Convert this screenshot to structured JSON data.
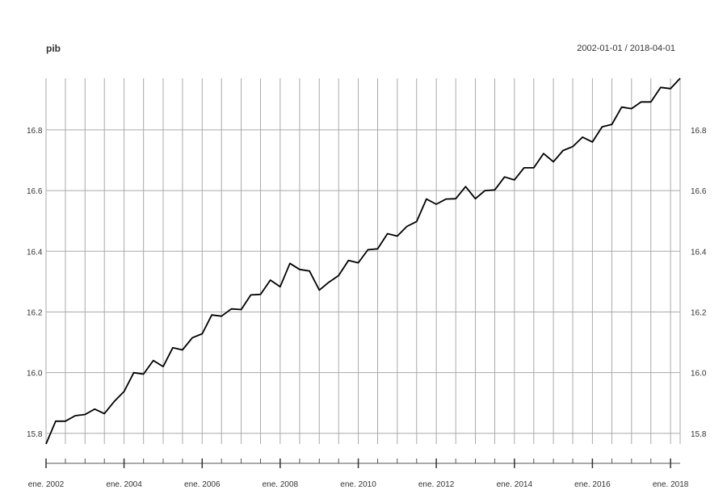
{
  "chart_data": {
    "type": "line",
    "title": "pib",
    "date_range": "2002-01-01 / 2018-04-01",
    "xlabel": "",
    "ylabel": "",
    "x_start": "2002-01-01",
    "x_end": "2018-04-01",
    "ylim": [
      15.765,
      16.97
    ],
    "grid": true,
    "y_ticks": [
      15.8,
      16.0,
      16.2,
      16.4,
      16.6,
      16.8
    ],
    "y_tick_labels": [
      "15.8",
      "16.0",
      "16.2",
      "16.4",
      "16.6",
      "16.8"
    ],
    "x_tick_dates": [
      "2002-01-01",
      "2004-01-01",
      "2006-01-01",
      "2008-01-01",
      "2010-01-01",
      "2012-01-01",
      "2014-01-01",
      "2016-01-01",
      "2018-01-01"
    ],
    "x_tick_labels": [
      "ene. 2002",
      "ene. 2004",
      "ene. 2006",
      "ene. 2008",
      "ene. 2010",
      "ene. 2012",
      "ene. 2014",
      "ene. 2016",
      "ene. 2018"
    ],
    "series": [
      {
        "color": "#000000",
        "x": [
          "2002-01-01",
          "2002-04-01",
          "2002-07-01",
          "2002-10-01",
          "2003-01-01",
          "2003-04-01",
          "2003-07-01",
          "2003-10-01",
          "2004-01-01",
          "2004-04-01",
          "2004-07-01",
          "2004-10-01",
          "2005-01-01",
          "2005-04-01",
          "2005-07-01",
          "2005-10-01",
          "2006-01-01",
          "2006-04-01",
          "2006-07-01",
          "2006-10-01",
          "2007-01-01",
          "2007-04-01",
          "2007-07-01",
          "2007-10-01",
          "2008-01-01",
          "2008-04-01",
          "2008-07-01",
          "2008-10-01",
          "2009-01-01",
          "2009-04-01",
          "2009-07-01",
          "2009-10-01",
          "2010-01-01",
          "2010-04-01",
          "2010-07-01",
          "2010-10-01",
          "2011-01-01",
          "2011-04-01",
          "2011-07-01",
          "2011-10-01",
          "2012-01-01",
          "2012-04-01",
          "2012-07-01",
          "2012-10-01",
          "2013-01-01",
          "2013-04-01",
          "2013-07-01",
          "2013-10-01",
          "2014-01-01",
          "2014-04-01",
          "2014-07-01",
          "2014-10-01",
          "2015-01-01",
          "2015-04-01",
          "2015-07-01",
          "2015-10-01",
          "2016-01-01",
          "2016-04-01",
          "2016-07-01",
          "2016-10-01",
          "2017-01-01",
          "2017-04-01",
          "2017-07-01",
          "2017-10-01",
          "2018-01-01",
          "2018-04-01"
        ],
        "y": [
          15.765,
          15.84,
          15.84,
          15.858,
          15.862,
          15.88,
          15.865,
          15.905,
          15.938,
          16.0,
          15.995,
          16.04,
          16.02,
          16.082,
          16.075,
          16.115,
          16.128,
          16.19,
          16.186,
          16.21,
          16.208,
          16.256,
          16.258,
          16.305,
          16.283,
          16.36,
          16.34,
          16.335,
          16.272,
          16.298,
          16.32,
          16.37,
          16.362,
          16.405,
          16.408,
          16.458,
          16.45,
          16.482,
          16.498,
          16.572,
          16.555,
          16.572,
          16.573,
          16.613,
          16.573,
          16.6,
          16.602,
          16.645,
          16.635,
          16.675,
          16.675,
          16.722,
          16.695,
          16.732,
          16.745,
          16.776,
          16.76,
          16.81,
          16.818,
          16.875,
          16.87,
          16.892,
          16.892,
          16.94,
          16.936,
          16.97
        ]
      }
    ]
  }
}
